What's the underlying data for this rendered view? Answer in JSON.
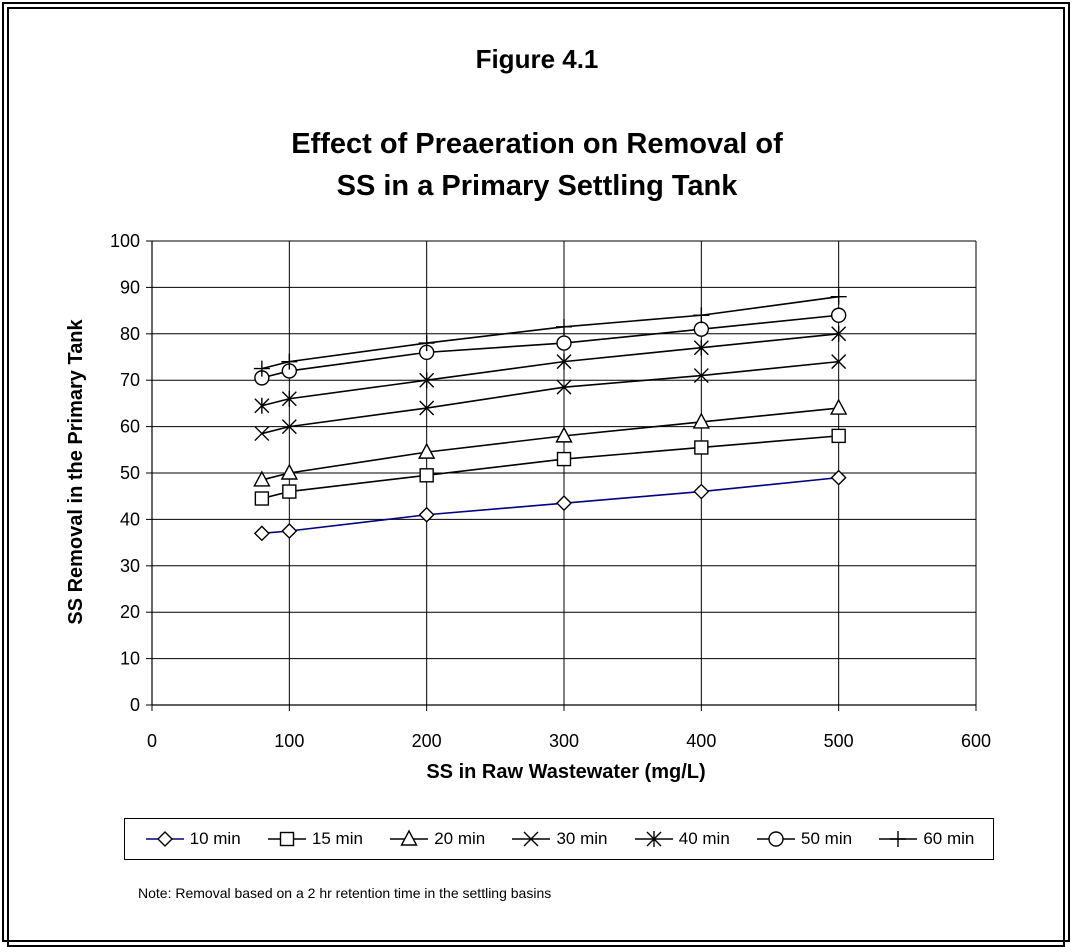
{
  "figure_label": "Figure 4.1",
  "note": "Note: Removal based on a 2 hr retention time in the settling basins",
  "chart_data": {
    "type": "line",
    "title": "Effect of Preaeration on Removal of SS in a Primary Settling Tank",
    "title_lines": [
      "Effect of Preaeration on Removal of",
      "SS in a Primary Settling Tank"
    ],
    "xlabel": "SS in Raw Wastewater (mg/L)",
    "ylabel": "SS Removal in the Primary Tank",
    "xlim": [
      0,
      600
    ],
    "ylim": [
      0,
      100
    ],
    "x_ticks": [
      "0",
      "100",
      "200",
      "300",
      "400",
      "500",
      "600"
    ],
    "y_ticks": [
      "0",
      "10",
      "20",
      "30",
      "40",
      "50",
      "60",
      "70",
      "80",
      "90",
      "100"
    ],
    "grid": true,
    "legend_position": "bottom",
    "x": [
      80,
      100,
      200,
      300,
      400,
      500
    ],
    "series": [
      {
        "name": "10 min",
        "marker": "diamond",
        "color": "#000080",
        "values": [
          37,
          37.5,
          41,
          43.5,
          46,
          49
        ]
      },
      {
        "name": "15 min",
        "marker": "square",
        "color": "#000000",
        "values": [
          44.5,
          46,
          49.5,
          53,
          55.5,
          58
        ]
      },
      {
        "name": "20 min",
        "marker": "triangle",
        "color": "#000000",
        "values": [
          48.5,
          50,
          54.5,
          58,
          61,
          64
        ]
      },
      {
        "name": "30 min",
        "marker": "x",
        "color": "#000000",
        "values": [
          58.5,
          60,
          64,
          68.5,
          71,
          74
        ]
      },
      {
        "name": "40 min",
        "marker": "star",
        "color": "#000000",
        "values": [
          64.5,
          66,
          70,
          74,
          77,
          80
        ]
      },
      {
        "name": "50 min",
        "marker": "circle",
        "color": "#000000",
        "values": [
          70.5,
          72,
          76,
          78,
          81,
          84
        ]
      },
      {
        "name": "60 min",
        "marker": "plus",
        "color": "#000000",
        "values": [
          72.5,
          74,
          78,
          81.5,
          84,
          88
        ]
      }
    ]
  }
}
